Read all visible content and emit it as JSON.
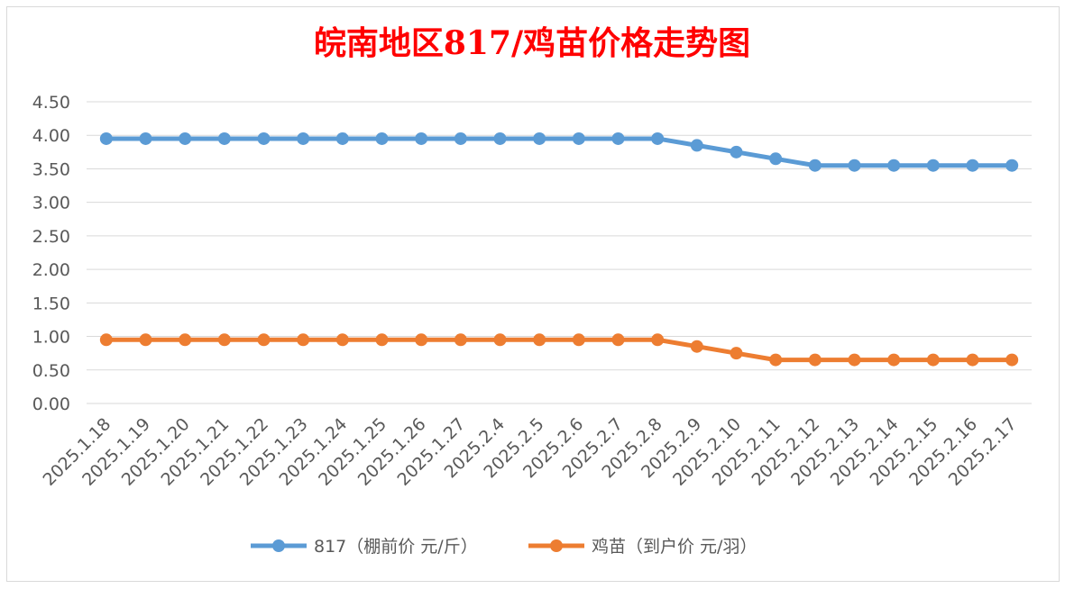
{
  "chart_data": {
    "type": "line",
    "title": "皖南地区817/鸡苗价格走势图",
    "categories": [
      "2025.1.18",
      "2025.1.19",
      "2025.1.20",
      "2025.1.21",
      "2025.1.22",
      "2025.1.23",
      "2025.1.24",
      "2025.1.25",
      "2025.1.26",
      "2025.1.27",
      "2025.2.4",
      "2025.2.5",
      "2025.2.6",
      "2025.2.7",
      "2025.2.8",
      "2025.2.9",
      "2025.2.10",
      "2025.2.11",
      "2025.2.12",
      "2025.2.13",
      "2025.2.14",
      "2025.2.15",
      "2025.2.16",
      "2025.2.17"
    ],
    "y_ticks": [
      "0.00",
      "0.50",
      "1.00",
      "1.50",
      "2.00",
      "2.50",
      "3.00",
      "3.50",
      "4.00",
      "4.50"
    ],
    "ylim": [
      0,
      4.5
    ],
    "grid": true,
    "legend_position": "bottom",
    "series": [
      {
        "name": "817（棚前价 元/斤）",
        "color": "#5b9bd5",
        "values": [
          3.95,
          3.95,
          3.95,
          3.95,
          3.95,
          3.95,
          3.95,
          3.95,
          3.95,
          3.95,
          3.95,
          3.95,
          3.95,
          3.95,
          3.95,
          3.85,
          3.75,
          3.65,
          3.55,
          3.55,
          3.55,
          3.55,
          3.55,
          3.55
        ]
      },
      {
        "name": "鸡苗（到户价 元/羽）",
        "color": "#ed7d31",
        "values": [
          0.95,
          0.95,
          0.95,
          0.95,
          0.95,
          0.95,
          0.95,
          0.95,
          0.95,
          0.95,
          0.95,
          0.95,
          0.95,
          0.95,
          0.95,
          0.85,
          0.75,
          0.65,
          0.65,
          0.65,
          0.65,
          0.65,
          0.65,
          0.65
        ]
      }
    ]
  }
}
